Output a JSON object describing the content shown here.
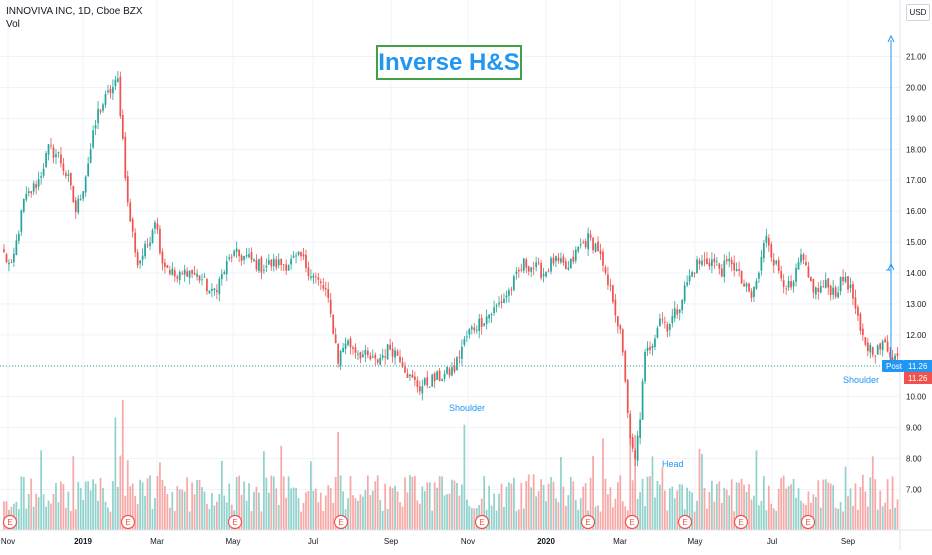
{
  "header": {
    "symbol_line": "INNOVIVA INC, 1D, Cboe BZX",
    "volume_label": "Vol",
    "currency": "USD"
  },
  "annotation_title": "Inverse H&S",
  "pattern_labels": {
    "left_shoulder": "Shoulder",
    "head": "Head",
    "right_shoulder": "Shoulder"
  },
  "price_tags": {
    "post_label": "Post",
    "post_price": "11.26",
    "last_price": "11.26"
  },
  "colors": {
    "up": "#26a69a",
    "down": "#ef5350",
    "annotation_text": "#2196f3",
    "annotation_border": "#43a047",
    "target_line": "#2196f3"
  },
  "earnings_marker": "E",
  "chart_data": {
    "type": "candlestick",
    "y_axis_ticks": [
      "21.00",
      "20.00",
      "19.00",
      "18.00",
      "17.00",
      "16.00",
      "15.00",
      "14.00",
      "13.00",
      "12.00",
      "11.00",
      "10.00",
      "9.00",
      "8.00",
      "7.00"
    ],
    "x_axis_ticks": [
      "Nov",
      "2019",
      "Mar",
      "May",
      "Jul",
      "Sep",
      "Nov",
      "2020",
      "Mar",
      "May",
      "Jul",
      "Sep"
    ],
    "ylim": [
      6.4,
      21.6
    ],
    "price_path": [
      {
        "i": 0,
        "p": 14.6
      },
      {
        "i": 3,
        "p": 14.1
      },
      {
        "i": 8,
        "p": 16.3
      },
      {
        "i": 14,
        "p": 17.0
      },
      {
        "i": 18,
        "p": 18.0
      },
      {
        "i": 22,
        "p": 17.8
      },
      {
        "i": 26,
        "p": 17.0
      },
      {
        "i": 29,
        "p": 16.0
      },
      {
        "i": 32,
        "p": 16.8
      },
      {
        "i": 38,
        "p": 19.2
      },
      {
        "i": 43,
        "p": 19.9
      },
      {
        "i": 46,
        "p": 20.2
      },
      {
        "i": 48,
        "p": 18.3
      },
      {
        "i": 50,
        "p": 16.2
      },
      {
        "i": 54,
        "p": 14.3
      },
      {
        "i": 58,
        "p": 14.9
      },
      {
        "i": 61,
        "p": 15.8
      },
      {
        "i": 64,
        "p": 14.4
      },
      {
        "i": 70,
        "p": 13.8
      },
      {
        "i": 74,
        "p": 14.1
      },
      {
        "i": 80,
        "p": 13.8
      },
      {
        "i": 84,
        "p": 13.3
      },
      {
        "i": 88,
        "p": 13.9
      },
      {
        "i": 92,
        "p": 14.6
      },
      {
        "i": 98,
        "p": 14.5
      },
      {
        "i": 104,
        "p": 14.2
      },
      {
        "i": 108,
        "p": 14.3
      },
      {
        "i": 114,
        "p": 14.3
      },
      {
        "i": 120,
        "p": 14.5
      },
      {
        "i": 124,
        "p": 14.0
      },
      {
        "i": 130,
        "p": 13.4
      },
      {
        "i": 133,
        "p": 12.2
      },
      {
        "i": 135,
        "p": 11.2
      },
      {
        "i": 138,
        "p": 11.8
      },
      {
        "i": 144,
        "p": 11.4
      },
      {
        "i": 150,
        "p": 11.1
      },
      {
        "i": 156,
        "p": 11.6
      },
      {
        "i": 160,
        "p": 11.3
      },
      {
        "i": 164,
        "p": 10.6
      },
      {
        "i": 168,
        "p": 10.3
      },
      {
        "i": 172,
        "p": 10.5
      },
      {
        "i": 178,
        "p": 10.7
      },
      {
        "i": 182,
        "p": 10.9
      },
      {
        "i": 185,
        "p": 11.6
      },
      {
        "i": 188,
        "p": 12.1
      },
      {
        "i": 192,
        "p": 12.4
      },
      {
        "i": 198,
        "p": 12.8
      },
      {
        "i": 204,
        "p": 13.4
      },
      {
        "i": 210,
        "p": 14.3
      },
      {
        "i": 214,
        "p": 14.2
      },
      {
        "i": 218,
        "p": 14.0
      },
      {
        "i": 222,
        "p": 14.4
      },
      {
        "i": 228,
        "p": 14.1
      },
      {
        "i": 232,
        "p": 14.8
      },
      {
        "i": 236,
        "p": 15.1
      },
      {
        "i": 240,
        "p": 14.8
      },
      {
        "i": 243,
        "p": 13.8
      },
      {
        "i": 246,
        "p": 13.2
      },
      {
        "i": 249,
        "p": 12.0
      },
      {
        "i": 251,
        "p": 10.6
      },
      {
        "i": 253,
        "p": 8.5
      },
      {
        "i": 255,
        "p": 7.9
      },
      {
        "i": 257,
        "p": 9.4
      },
      {
        "i": 259,
        "p": 11.3
      },
      {
        "i": 262,
        "p": 11.8
      },
      {
        "i": 265,
        "p": 12.6
      },
      {
        "i": 268,
        "p": 12.3
      },
      {
        "i": 272,
        "p": 12.8
      },
      {
        "i": 276,
        "p": 13.7
      },
      {
        "i": 280,
        "p": 14.3
      },
      {
        "i": 286,
        "p": 14.4
      },
      {
        "i": 290,
        "p": 14.1
      },
      {
        "i": 294,
        "p": 14.4
      },
      {
        "i": 298,
        "p": 13.7
      },
      {
        "i": 302,
        "p": 13.2
      },
      {
        "i": 305,
        "p": 14.0
      },
      {
        "i": 308,
        "p": 15.3
      },
      {
        "i": 311,
        "p": 14.4
      },
      {
        "i": 314,
        "p": 13.9
      },
      {
        "i": 318,
        "p": 13.4
      },
      {
        "i": 322,
        "p": 14.5
      },
      {
        "i": 325,
        "p": 13.8
      },
      {
        "i": 328,
        "p": 13.4
      },
      {
        "i": 332,
        "p": 13.6
      },
      {
        "i": 336,
        "p": 13.4
      },
      {
        "i": 340,
        "p": 13.9
      },
      {
        "i": 343,
        "p": 13.2
      },
      {
        "i": 346,
        "p": 12.0
      },
      {
        "i": 349,
        "p": 11.6
      },
      {
        "i": 353,
        "p": 11.5
      },
      {
        "i": 356,
        "p": 11.7
      },
      {
        "i": 359,
        "p": 11.3
      }
    ]
  }
}
